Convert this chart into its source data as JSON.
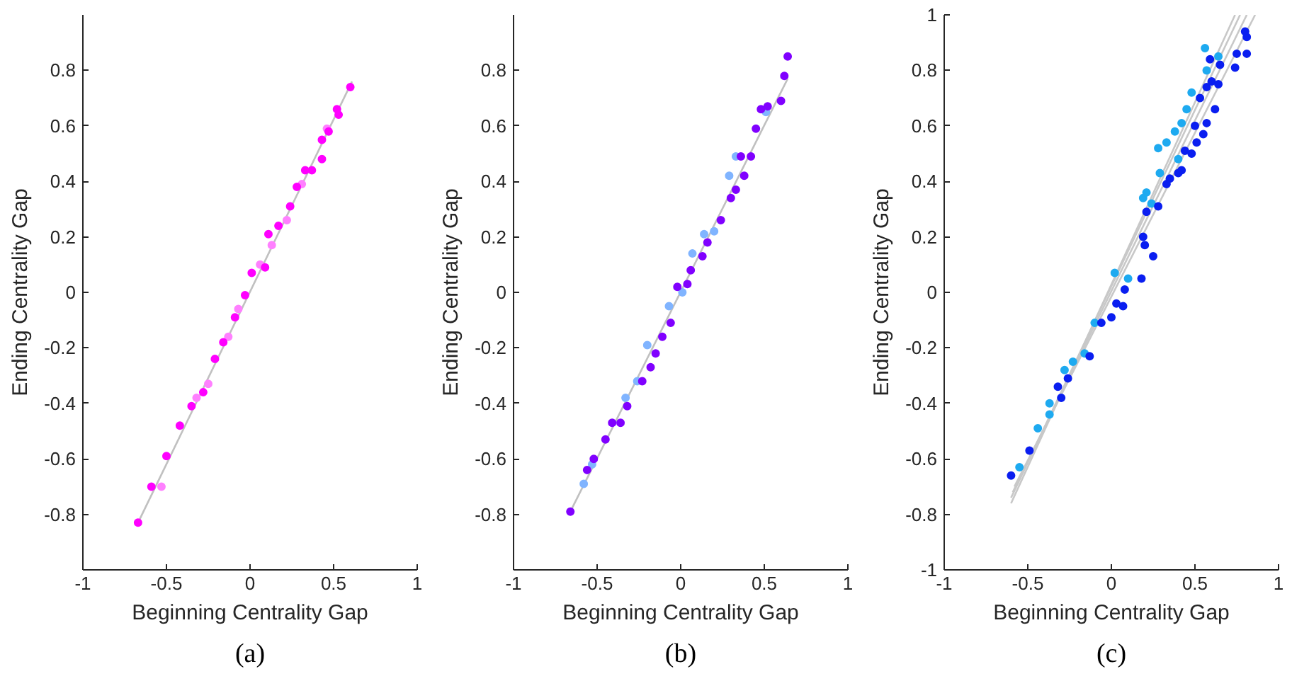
{
  "chart_data": [
    {
      "type": "scatter",
      "xlabel": "Beginning Centrality Gap",
      "ylabel": "Ending Centrality Gap",
      "annotations": [
        "(a)"
      ],
      "marker": "circle",
      "xlim": [
        -1,
        1
      ],
      "ylim": [
        -1,
        1
      ],
      "xticks": [
        -1,
        -0.5,
        0,
        0.5,
        1
      ],
      "yticks": [
        -0.8,
        -0.6,
        -0.4,
        -0.2,
        0,
        0.2,
        0.4,
        0.6,
        0.8
      ],
      "series": [
        {
          "type": "line",
          "marker": "none",
          "color": "#c0c0c0",
          "x": [
            -0.67,
            0.61
          ],
          "values": [
            -0.83,
            0.76
          ]
        },
        {
          "color": "#ff80ff",
          "x": [
            -0.53,
            -0.32,
            -0.25,
            -0.13,
            -0.07,
            0.06,
            0.13,
            0.22,
            0.31,
            0.46
          ],
          "values": [
            -0.7,
            -0.38,
            -0.33,
            -0.16,
            -0.06,
            0.1,
            0.17,
            0.26,
            0.39,
            0.59
          ]
        },
        {
          "color": "#ff00ff",
          "x": [
            -0.67,
            -0.59,
            -0.5,
            -0.42,
            -0.35,
            -0.28,
            -0.21,
            -0.16,
            -0.09,
            -0.03,
            0.01,
            0.09,
            0.11,
            0.17,
            0.24,
            0.28,
            0.33,
            0.37,
            0.43,
            0.43,
            0.47,
            0.52,
            0.53,
            0.6
          ],
          "values": [
            -0.83,
            -0.7,
            -0.59,
            -0.48,
            -0.41,
            -0.36,
            -0.24,
            -0.18,
            -0.09,
            -0.01,
            0.07,
            0.09,
            0.21,
            0.24,
            0.31,
            0.38,
            0.44,
            0.44,
            0.55,
            0.48,
            0.58,
            0.66,
            0.64,
            0.74
          ]
        }
      ]
    },
    {
      "type": "scatter",
      "xlabel": "Beginning Centrality Gap",
      "ylabel": "Ending Centrality Gap",
      "annotations": [
        "(b)"
      ],
      "marker": "circle",
      "xlim": [
        -1,
        1
      ],
      "ylim": [
        -1,
        1
      ],
      "xticks": [
        -1,
        -0.5,
        0,
        0.5,
        1
      ],
      "yticks": [
        -0.8,
        -0.6,
        -0.4,
        -0.2,
        0,
        0.2,
        0.4,
        0.6,
        0.8
      ],
      "series": [
        {
          "type": "line",
          "marker": "none",
          "color": "#c0c0c0",
          "x": [
            -0.66,
            0.64
          ],
          "values": [
            -0.79,
            0.77
          ]
        },
        {
          "color": "#80b4ff",
          "x": [
            -0.58,
            -0.53,
            -0.33,
            -0.26,
            -0.2,
            -0.07,
            0.01,
            0.07,
            0.14,
            0.2,
            0.29,
            0.33,
            0.51
          ],
          "values": [
            -0.69,
            -0.62,
            -0.38,
            -0.32,
            -0.19,
            -0.05,
            0.0,
            0.14,
            0.21,
            0.22,
            0.42,
            0.49,
            0.65
          ]
        },
        {
          "color": "#8000ff",
          "x": [
            -0.66,
            -0.56,
            -0.52,
            -0.45,
            -0.41,
            -0.36,
            -0.32,
            -0.23,
            -0.18,
            -0.15,
            -0.11,
            -0.06,
            -0.02,
            0.04,
            0.06,
            0.13,
            0.16,
            0.24,
            0.3,
            0.33,
            0.38,
            0.36,
            0.42,
            0.45,
            0.48,
            0.52,
            0.6,
            0.62,
            0.64
          ],
          "values": [
            -0.79,
            -0.64,
            -0.6,
            -0.53,
            -0.47,
            -0.47,
            -0.41,
            -0.32,
            -0.27,
            -0.22,
            -0.16,
            -0.11,
            0.02,
            0.03,
            0.08,
            0.13,
            0.18,
            0.26,
            0.34,
            0.37,
            0.42,
            0.49,
            0.49,
            0.59,
            0.66,
            0.67,
            0.69,
            0.78,
            0.85
          ]
        }
      ]
    },
    {
      "type": "scatter",
      "xlabel": "Beginning Centrality Gap",
      "ylabel": "Ending Centrality Gap",
      "annotations": [
        "(c)"
      ],
      "marker": "circle",
      "xlim": [
        -1,
        1
      ],
      "ylim": [
        -1,
        1
      ],
      "xticks": [
        -1,
        -0.5,
        0,
        0.5,
        1
      ],
      "yticks": [
        -1,
        -0.8,
        -0.6,
        -0.4,
        -0.2,
        0,
        0.2,
        0.4,
        0.6,
        0.8,
        1
      ],
      "series": [
        {
          "type": "line",
          "marker": "none",
          "color": "#c8c8c8",
          "x": [
            -0.6,
            0.74
          ],
          "values": [
            -0.76,
            1.0
          ]
        },
        {
          "type": "line",
          "marker": "none",
          "color": "#c8c8c8",
          "x": [
            -0.6,
            0.77
          ],
          "values": [
            -0.74,
            1.0
          ]
        },
        {
          "type": "line",
          "marker": "none",
          "color": "#c8c8c8",
          "x": [
            -0.59,
            0.81
          ],
          "values": [
            -0.72,
            1.0
          ]
        },
        {
          "type": "line",
          "marker": "none",
          "color": "#c8c8c8",
          "x": [
            -0.58,
            0.86
          ],
          "values": [
            -0.7,
            1.0
          ]
        },
        {
          "color": "#1eaaf0",
          "x": [
            -0.55,
            -0.44,
            -0.37,
            -0.37,
            -0.28,
            -0.23,
            -0.16,
            -0.1,
            0.02,
            0.1,
            0.19,
            0.21,
            0.24,
            0.29,
            0.28,
            0.33,
            0.38,
            0.42,
            0.45,
            0.48,
            0.57,
            0.56,
            0.64,
            0.4
          ],
          "values": [
            -0.63,
            -0.49,
            -0.44,
            -0.4,
            -0.28,
            -0.25,
            -0.22,
            -0.11,
            0.07,
            0.05,
            0.34,
            0.36,
            0.32,
            0.43,
            0.52,
            0.54,
            0.58,
            0.61,
            0.66,
            0.72,
            0.8,
            0.88,
            0.85,
            0.48
          ]
        },
        {
          "color": "#0a1ef0",
          "x": [
            -0.6,
            -0.49,
            -0.32,
            -0.3,
            -0.26,
            -0.13,
            -0.06,
            0.0,
            0.03,
            0.08,
            0.07,
            0.18,
            0.19,
            0.2,
            0.25,
            0.21,
            0.28,
            0.33,
            0.35,
            0.4,
            0.42,
            0.44,
            0.48,
            0.51,
            0.55,
            0.5,
            0.57,
            0.62,
            0.6,
            0.64,
            0.65,
            0.53,
            0.57,
            0.59,
            0.74,
            0.81,
            0.75,
            0.8,
            0.81
          ],
          "values": [
            -0.66,
            -0.57,
            -0.34,
            -0.38,
            -0.31,
            -0.23,
            -0.11,
            -0.09,
            -0.04,
            0.01,
            -0.05,
            0.05,
            0.2,
            0.17,
            0.13,
            0.29,
            0.31,
            0.39,
            0.41,
            0.43,
            0.44,
            0.51,
            0.5,
            0.54,
            0.57,
            0.6,
            0.61,
            0.66,
            0.76,
            0.75,
            0.82,
            0.7,
            0.74,
            0.84,
            0.81,
            0.86,
            0.86,
            0.94,
            0.92
          ]
        }
      ]
    }
  ]
}
